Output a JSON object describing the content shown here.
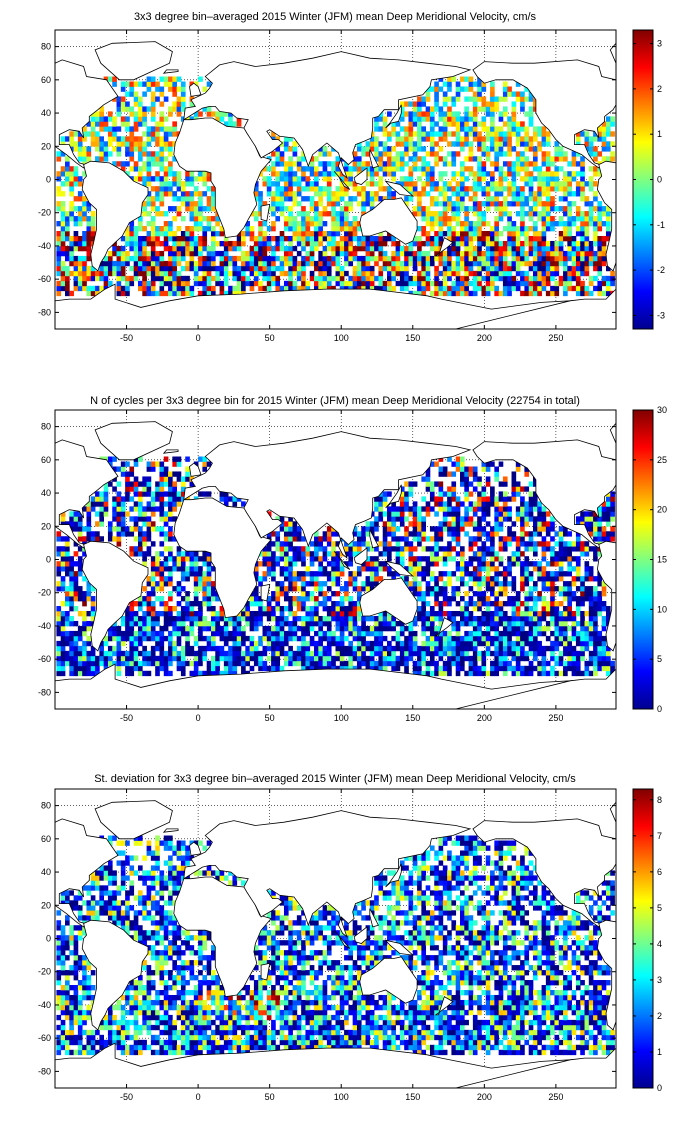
{
  "chart_data": [
    {
      "type": "heatmap",
      "title": "3x3 degree bin–averaged 2015 Winter (JFM) mean Deep Meridional Velocity, cm/s",
      "x_ticks": [
        -50,
        0,
        50,
        100,
        150,
        200,
        250
      ],
      "y_ticks": [
        -80,
        -60,
        -40,
        -20,
        0,
        20,
        40,
        60,
        80
      ],
      "xlim": [
        -100,
        292
      ],
      "ylim": [
        -90,
        90
      ],
      "bin_size_deg": 3,
      "grid": true,
      "colormap": "jet",
      "colorbar": {
        "range": [
          -3.3,
          3.3
        ],
        "ticks": [
          -3,
          -2,
          -1,
          0,
          1,
          2,
          3
        ]
      }
    },
    {
      "type": "heatmap",
      "title": "N of cycles per 3x3 degree bin for 2015 Winter (JFM) mean Deep Meridional Velocity (22754 in total)",
      "x_ticks": [
        -50,
        0,
        50,
        100,
        150,
        200,
        250
      ],
      "y_ticks": [
        -80,
        -60,
        -40,
        -20,
        0,
        20,
        40,
        60,
        80
      ],
      "xlim": [
        -100,
        292
      ],
      "ylim": [
        -90,
        90
      ],
      "bin_size_deg": 3,
      "grid": true,
      "colormap": "jet",
      "colorbar": {
        "range": [
          0,
          30
        ],
        "ticks": [
          0,
          5,
          10,
          15,
          20,
          25,
          30
        ]
      }
    },
    {
      "type": "heatmap",
      "title": "St. deviation for 3x3 degree bin–averaged 2015 Winter (JFM) mean Deep Meridional Velocity, cm/s",
      "x_ticks": [
        -50,
        0,
        50,
        100,
        150,
        200,
        250
      ],
      "y_ticks": [
        -80,
        -60,
        -40,
        -20,
        0,
        20,
        40,
        60,
        80
      ],
      "xlim": [
        -100,
        292
      ],
      "ylim": [
        -90,
        90
      ],
      "bin_size_deg": 3,
      "grid": true,
      "colormap": "jet",
      "colorbar": {
        "range": [
          0,
          8.3
        ],
        "ticks": [
          0,
          1,
          2,
          3,
          4,
          5,
          6,
          7,
          8
        ]
      }
    }
  ]
}
